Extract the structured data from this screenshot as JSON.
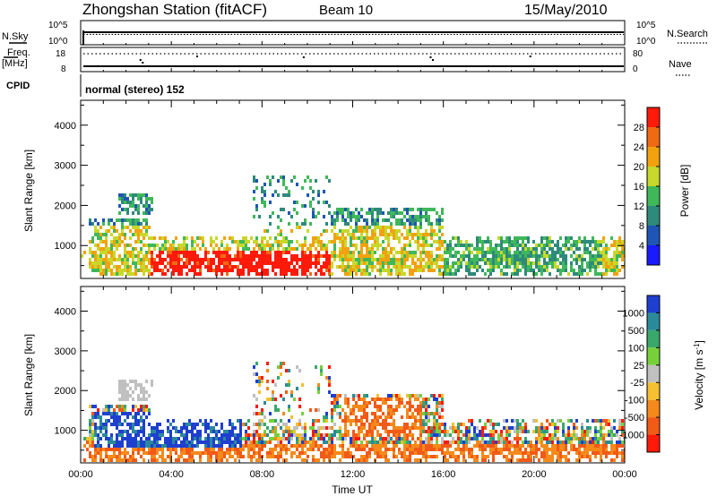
{
  "header": {
    "station": "Zhongshan Station (fitACF)",
    "beam": "Beam 10",
    "date": "15/May/2010"
  },
  "top_panels": {
    "nsky_label": "N.Sky",
    "nsky_ticks": [
      "10^5",
      "10^0"
    ],
    "nsearch_label": "N.Search",
    "nsearch_ticks": [
      "10^5",
      "10^0"
    ],
    "freq_label_1": "Freq.",
    "freq_label_2": "[MHz]",
    "freq_ticks": [
      "18",
      "8"
    ],
    "nave_label": "Nave",
    "nave_ticks": [
      "80",
      "0"
    ],
    "cpid_label": "CPID",
    "cpid_text": "normal (stereo) 152"
  },
  "chart_data": [
    {
      "type": "heatmap",
      "name": "power-panel",
      "ylabel": "Slant Range [km]",
      "yticks": [
        "1000",
        "2000",
        "3000",
        "4000"
      ],
      "ylim": [
        180,
        4620
      ],
      "xlabel": "Time UT",
      "xticks": [
        "00:00",
        "04:00",
        "08:00",
        "12:00",
        "16:00",
        "20:00",
        "00:00"
      ],
      "xlim_hours": [
        0,
        24
      ],
      "colorbar_label": "Power [dB]",
      "colorbar_ticks": [
        "4",
        "8",
        "12",
        "16",
        "20",
        "24",
        "28"
      ],
      "colorbar_range": [
        0,
        32
      ],
      "colors": [
        "#1a1aff",
        "#1f55b4",
        "#2e8a7a",
        "#3fb85a",
        "#c8d82a",
        "#f2a20e",
        "#f06a14",
        "#ff1a0a"
      ]
    },
    {
      "type": "heatmap",
      "name": "velocity-panel",
      "ylabel": "Slant Range [km]",
      "yticks": [
        "1000",
        "2000",
        "3000",
        "4000"
      ],
      "ylim": [
        180,
        4620
      ],
      "xlabel": "Time UT",
      "xticks": [
        "00:00",
        "04:00",
        "08:00",
        "12:00",
        "16:00",
        "20:00",
        "00:00"
      ],
      "xlim_hours": [
        0,
        24
      ],
      "colorbar_label": "Velocity [m s",
      "colorbar_label_sup": "-1",
      "colorbar_ticks": [
        "1000",
        "500",
        "100",
        "25",
        "-25",
        "-100",
        "-500",
        "-1000"
      ],
      "colors": [
        "#1f3fd0",
        "#2a8a9a",
        "#3aa86a",
        "#77d03a",
        "#c0c0c0",
        "#f4c030",
        "#f58a1a",
        "#f25a18",
        "#ff1a0a"
      ]
    }
  ]
}
